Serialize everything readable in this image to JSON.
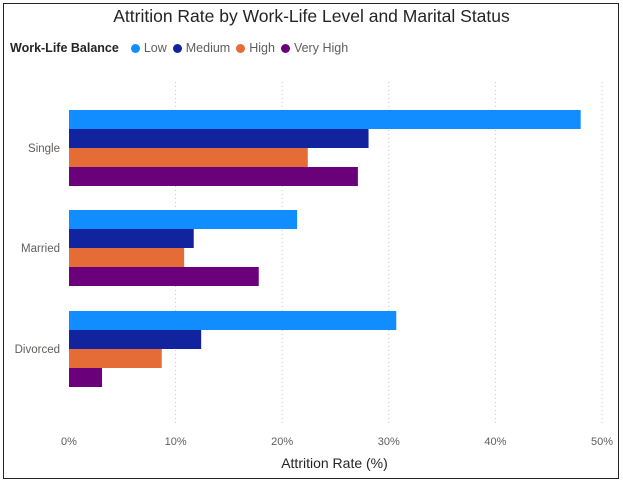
{
  "chart_data": {
    "type": "bar",
    "orientation": "horizontal",
    "title": "Attrition Rate by Work-Life Level and Marital Status",
    "xlabel": "Attrition Rate (%)",
    "ylabel": "",
    "legend_title": "Work-Life Balance",
    "legend_position": "top-left",
    "grid": true,
    "xlim": [
      0,
      50
    ],
    "x_ticks": [
      "0%",
      "10%",
      "20%",
      "30%",
      "40%",
      "50%"
    ],
    "x_tick_values": [
      0,
      10,
      20,
      30,
      40,
      50
    ],
    "categories": [
      "Single",
      "Married",
      "Divorced"
    ],
    "series": [
      {
        "name": "Low",
        "color": "#118dff",
        "values": [
          48.0,
          21.4,
          30.7
        ]
      },
      {
        "name": "Medium",
        "color": "#12239e",
        "values": [
          28.1,
          11.7,
          12.4
        ]
      },
      {
        "name": "High",
        "color": "#e66c37",
        "values": [
          22.4,
          10.8,
          8.7
        ]
      },
      {
        "name": "Very High",
        "color": "#6b007b",
        "values": [
          27.1,
          17.8,
          3.1
        ]
      }
    ]
  }
}
